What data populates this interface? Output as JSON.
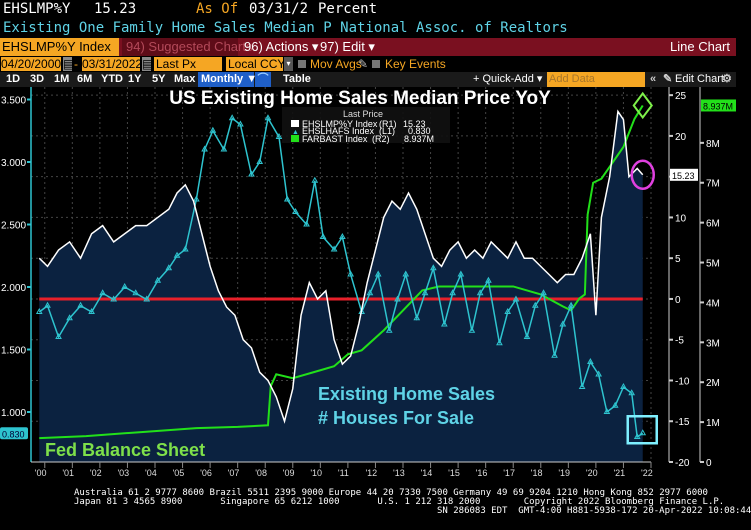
{
  "header": {
    "ticker": "EHSLMP%Y",
    "last_value": "15.23",
    "as_of_label": "As Of",
    "as_of_date": "03/31/2",
    "units": "Percent",
    "description": "Existing One Family Home Sales Median P National Assoc. of Realtors"
  },
  "toolbar": {
    "security": "EHSLMP%Y Index",
    "suggested_charts": "94) Suggested Charts",
    "actions": "96) Actions ▾",
    "edit": "97) Edit ▾",
    "chart_type": "Line Chart"
  },
  "controls": {
    "start_date": "04/20/2000",
    "end_date": "03/31/2022",
    "dash": "-",
    "field": "Last Px",
    "currency": "Local CCY",
    "mov_avgs": "Mov Avgs",
    "key_events": "Key Events"
  },
  "periods": [
    "1D",
    "3D",
    "1M",
    "6M",
    "YTD",
    "1Y",
    "5Y",
    "Max"
  ],
  "frequency": "Monthly ▼",
  "table_label": "Table",
  "quick_add": "+ Quick-Add ▾",
  "add_data_placeholder": "Add Data",
  "collapse": "«",
  "edit_chart": "Edit Chart",
  "colors": {
    "white_series": "#ffffff",
    "cyan_series": "#2ec4cf",
    "green_series": "#22e01a",
    "red_line": "#e8202a",
    "fill": "#0b2240",
    "accent_orange": "#f5a623",
    "bar_red": "#7a1020",
    "annotation_magenta": "#e040e0",
    "annotation_cyan": "#7ff0ff"
  },
  "chart_data": {
    "type": "line",
    "title": "US Existing  Home Sales Median Price YoY",
    "legend": {
      "heading": "Last Price",
      "entries": [
        {
          "name": "EHSLMP%Y Index",
          "axis": "(R1)",
          "value": "15.23"
        },
        {
          "name": "EHSLHAFS Index",
          "axis": "(L1)",
          "value": "0.830"
        },
        {
          "name": "FARBAST Index",
          "axis": "(R2)",
          "value": "8.937M"
        }
      ],
      "placement": "top-center"
    },
    "x_ticks": [
      "'00",
      "'01",
      "'02",
      "'03",
      "'04",
      "'05",
      "'06",
      "'07",
      "'08",
      "'09",
      "'10",
      "'11",
      "'12",
      "'13",
      "'14",
      "'15",
      "'16",
      "'17",
      "'18",
      "'19",
      "'20",
      "'21",
      "'22"
    ],
    "left_axis": {
      "ticks": [
        "3.500",
        "3.000",
        "2.500",
        "2.000",
        "1.500",
        "1.000"
      ],
      "range": [
        0.6,
        3.6
      ],
      "last_label": "0.830"
    },
    "right_axis_1": {
      "ticks": [
        "25",
        "20",
        "15",
        "10",
        "5",
        "0",
        "-5",
        "-10",
        "-15",
        "-20"
      ],
      "range": [
        -20,
        26
      ],
      "last_label": "15.23"
    },
    "right_axis_2": {
      "ticks": [
        "8M",
        "7M",
        "6M",
        "5M",
        "4M",
        "3M",
        "2M",
        "1M",
        "0"
      ],
      "range": [
        0,
        9.4
      ],
      "last_label": "8.937M"
    },
    "annotations": [
      "Existing Home Sales",
      "# Houses For Sale",
      "Fed Balance Sheet"
    ],
    "series": [
      {
        "name": "EHSLMP%Y Index",
        "axis": "R1",
        "x": [
          2000.3,
          2000.6,
          2001.0,
          2001.4,
          2001.8,
          2002.2,
          2002.6,
          2003.0,
          2003.4,
          2003.8,
          2004.2,
          2004.6,
          2005.0,
          2005.3,
          2005.6,
          2005.9,
          2006.2,
          2006.5,
          2006.8,
          2007.1,
          2007.4,
          2007.7,
          2008.0,
          2008.3,
          2008.6,
          2008.9,
          2009.2,
          2009.5,
          2009.8,
          2010.1,
          2010.4,
          2010.7,
          2011.0,
          2011.3,
          2011.6,
          2011.9,
          2012.2,
          2012.5,
          2012.8,
          2013.1,
          2013.4,
          2013.7,
          2014.0,
          2014.3,
          2014.6,
          2014.9,
          2015.2,
          2015.5,
          2015.8,
          2016.1,
          2016.4,
          2016.7,
          2017.0,
          2017.3,
          2017.6,
          2017.9,
          2018.2,
          2018.5,
          2018.8,
          2019.1,
          2019.4,
          2019.7,
          2020.0,
          2020.3,
          2020.5,
          2020.7,
          2021.0,
          2021.3,
          2021.5,
          2021.7,
          2022.0,
          2022.2
        ],
        "values": [
          5,
          4,
          6,
          7,
          5,
          8,
          9,
          7,
          8,
          9,
          9,
          10,
          11,
          13,
          14,
          12,
          8,
          4,
          1,
          -1,
          -2,
          -5,
          -6,
          -9,
          -10,
          -12,
          -15,
          -11,
          -2,
          2,
          0,
          1,
          -5,
          -8,
          -7,
          -3,
          2,
          6,
          10,
          12,
          11,
          13,
          11,
          8,
          5,
          4,
          6,
          7,
          5,
          6,
          5,
          7,
          6,
          5,
          7,
          5,
          5,
          4,
          3,
          2,
          3,
          3,
          5,
          8,
          -2,
          10,
          15,
          23,
          22,
          15,
          16,
          15.23
        ]
      },
      {
        "name": "EHSLHAFS Index",
        "axis": "L1",
        "x": [
          2000.3,
          2000.6,
          2001.0,
          2001.4,
          2001.8,
          2002.2,
          2002.6,
          2003.0,
          2003.4,
          2003.8,
          2004.2,
          2004.6,
          2005.0,
          2005.3,
          2005.6,
          2006.0,
          2006.3,
          2006.6,
          2007.0,
          2007.3,
          2007.6,
          2008.0,
          2008.3,
          2008.6,
          2009.0,
          2009.3,
          2009.6,
          2010.0,
          2010.3,
          2010.6,
          2011.0,
          2011.3,
          2011.6,
          2012.0,
          2012.3,
          2012.6,
          2013.0,
          2013.3,
          2013.6,
          2014.0,
          2014.3,
          2014.6,
          2015.0,
          2015.3,
          2015.6,
          2016.0,
          2016.3,
          2016.6,
          2017.0,
          2017.3,
          2017.6,
          2018.0,
          2018.3,
          2018.6,
          2019.0,
          2019.3,
          2019.6,
          2020.0,
          2020.3,
          2020.6,
          2020.9,
          2021.2,
          2021.5,
          2021.8,
          2022.0,
          2022.2
        ],
        "values": [
          1.8,
          1.85,
          1.6,
          1.75,
          1.85,
          1.8,
          1.95,
          1.9,
          2.0,
          1.95,
          1.9,
          2.05,
          2.15,
          2.25,
          2.3,
          2.7,
          3.1,
          3.25,
          3.1,
          3.35,
          3.3,
          2.9,
          3.0,
          3.35,
          3.2,
          2.7,
          2.6,
          2.5,
          2.85,
          2.4,
          2.3,
          2.4,
          2.1,
          1.8,
          1.95,
          2.1,
          1.65,
          1.9,
          2.1,
          1.75,
          1.95,
          2.15,
          1.7,
          1.95,
          2.1,
          1.65,
          1.95,
          2.05,
          1.55,
          1.8,
          1.9,
          1.6,
          1.85,
          1.95,
          1.45,
          1.7,
          1.85,
          1.2,
          1.4,
          1.3,
          1.0,
          1.05,
          1.2,
          1.15,
          0.8,
          0.83
        ]
      },
      {
        "name": "FARBAST Index",
        "axis": "R2",
        "x": [
          2000.3,
          2002.0,
          2004.0,
          2006.0,
          2007.5,
          2008.6,
          2008.7,
          2008.9,
          2009.5,
          2010.5,
          2011.0,
          2011.5,
          2012.0,
          2012.8,
          2013.5,
          2014.2,
          2014.8,
          2016.0,
          2017.5,
          2018.5,
          2019.3,
          2019.6,
          2019.9,
          2020.1,
          2020.2,
          2020.4,
          2020.7,
          2021.0,
          2021.5,
          2021.9,
          2022.2
        ],
        "values": [
          0.6,
          0.65,
          0.75,
          0.85,
          0.88,
          0.92,
          1.9,
          2.2,
          2.1,
          2.3,
          2.4,
          2.7,
          2.8,
          3.3,
          3.8,
          4.3,
          4.4,
          4.4,
          4.4,
          4.2,
          3.9,
          3.8,
          4.1,
          4.2,
          6.2,
          7.0,
          7.1,
          7.4,
          7.9,
          8.6,
          8.937
        ]
      },
      {
        "name": "Zero line",
        "axis": "R1",
        "x": [
          2000.3,
          2022.2
        ],
        "values": [
          0,
          0
        ]
      }
    ]
  },
  "footer": {
    "line1": "Australia 61 2 9777 8600 Brazil 5511 2395 9000 Europe 44 20 7330 7500 Germany 49 69 9204 1210 Hong Kong 852 2977 6000",
    "line2": "Japan 81 3 4565 8900       Singapore 65 6212 1000       U.S. 1 212 318 2000        Copyright 2022 Bloomberg Finance L.P.",
    "line3": "SN 286083 EDT  GMT-4:00 H881-5938-172 20-Apr-2022 10:08:44"
  }
}
